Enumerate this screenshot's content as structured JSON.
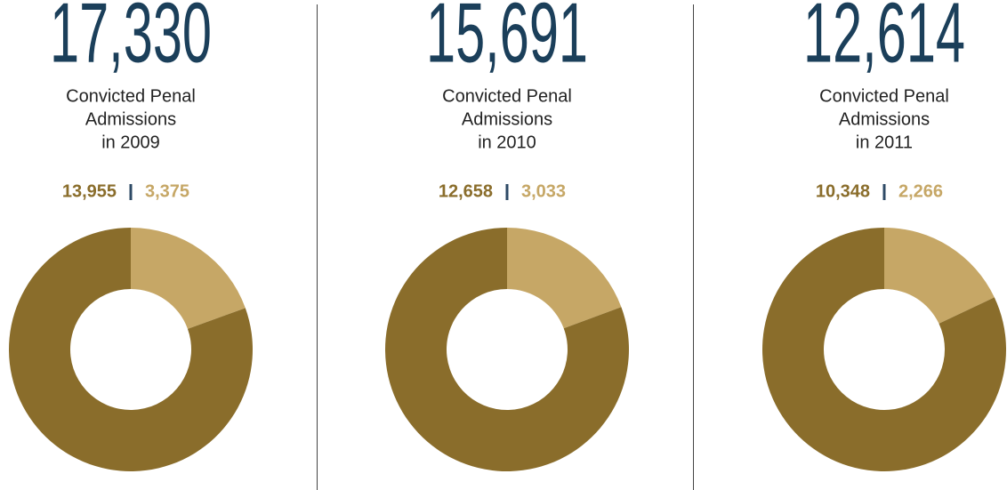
{
  "chart_data": [
    {
      "type": "donut",
      "title": "17,330",
      "subtitle": [
        "Convicted Penal",
        "Admissions",
        "in 2009"
      ],
      "series": [
        {
          "color": "#8a6d2b",
          "values": [
            13955
          ],
          "value_labels": [
            "13,955"
          ]
        },
        {
          "color": "#c6a766",
          "values": [
            3375
          ],
          "value_labels": [
            "3,375"
          ]
        }
      ]
    },
    {
      "type": "donut",
      "title": "15,691",
      "subtitle": [
        "Convicted Penal",
        "Admissions",
        "in 2010"
      ],
      "series": [
        {
          "color": "#8a6d2b",
          "values": [
            12658
          ],
          "value_labels": [
            "12,658"
          ]
        },
        {
          "color": "#c6a766",
          "values": [
            3033
          ],
          "value_labels": [
            "3,033"
          ]
        }
      ]
    },
    {
      "type": "donut",
      "title": "12,614",
      "subtitle": [
        "Convicted Penal",
        "Admissions",
        "in 2011"
      ],
      "series": [
        {
          "color": "#8a6d2b",
          "values": [
            10348
          ],
          "value_labels": [
            "10,348"
          ]
        },
        {
          "color": "#c6a766",
          "values": [
            2266
          ],
          "value_labels": [
            "2,266"
          ]
        }
      ]
    }
  ]
}
